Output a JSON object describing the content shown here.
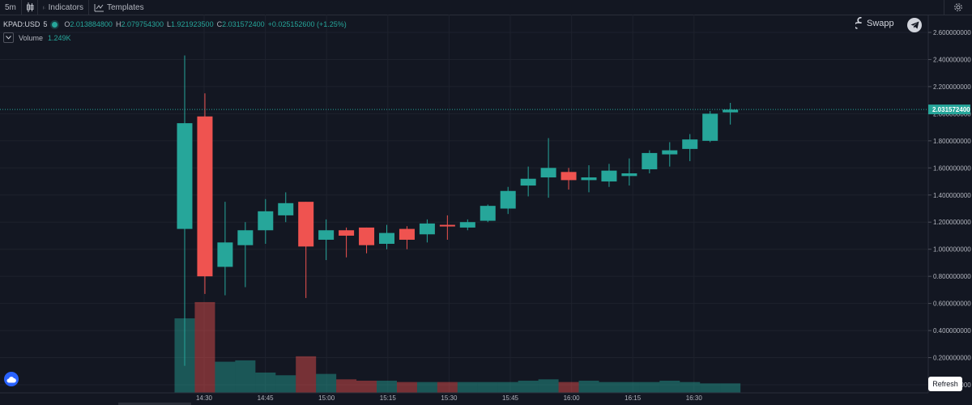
{
  "toolbar": {
    "interval": "5m",
    "indicators_label": "Indicators",
    "templates_label": "Templates"
  },
  "legend": {
    "symbol": "KPAD:USD",
    "interval": "5",
    "open_key": "O",
    "open": "2.013884800",
    "high_key": "H",
    "high": "2.079754300",
    "low_key": "L",
    "low": "1.921923500",
    "close_key": "C",
    "close": "2.031572400",
    "change": "+0.025152600 (+1.25%)",
    "volume_label": "Volume",
    "volume_value": "1.249K"
  },
  "brand": {
    "name": "Swapp"
  },
  "refresh_label": "Refresh",
  "colors": {
    "up": "#26a69a",
    "down": "#ef5350",
    "background": "#131722",
    "grid": "#1e222d"
  },
  "chart_data": {
    "type": "candlestick",
    "price_axis": {
      "ticks": [
        "2.600000000",
        "2.400000000",
        "2.200000000",
        "2.000000000",
        "1.800000000",
        "1.600000000",
        "1.400000000",
        "1.200000000",
        "1.000000000",
        "0.800000000",
        "0.600000000",
        "0.400000000",
        "0.200000000",
        "0.000000000"
      ],
      "range": [
        0,
        2.6
      ],
      "last_price_label": "2.031572400"
    },
    "time_axis": {
      "labels": [
        "14:30",
        "14:45",
        "15:00",
        "15:15",
        "15:30",
        "15:45",
        "16:00",
        "16:15",
        "16:30"
      ]
    },
    "candles": [
      {
        "o": 1.15,
        "h": 2.43,
        "l": 0.14,
        "c": 1.93
      },
      {
        "o": 1.98,
        "h": 2.15,
        "l": 0.67,
        "c": 0.8
      },
      {
        "o": 0.87,
        "h": 1.35,
        "l": 0.66,
        "c": 1.05
      },
      {
        "o": 1.03,
        "h": 1.2,
        "l": 0.72,
        "c": 1.14
      },
      {
        "o": 1.14,
        "h": 1.37,
        "l": 1.04,
        "c": 1.28
      },
      {
        "o": 1.25,
        "h": 1.42,
        "l": 1.2,
        "c": 1.34
      },
      {
        "o": 1.35,
        "h": 1.35,
        "l": 0.64,
        "c": 1.02
      },
      {
        "o": 1.07,
        "h": 1.22,
        "l": 0.92,
        "c": 1.14
      },
      {
        "o": 1.14,
        "h": 1.16,
        "l": 0.94,
        "c": 1.1
      },
      {
        "o": 1.16,
        "h": 1.16,
        "l": 0.97,
        "c": 1.03
      },
      {
        "o": 1.04,
        "h": 1.18,
        "l": 1.0,
        "c": 1.12
      },
      {
        "o": 1.15,
        "h": 1.17,
        "l": 1.0,
        "c": 1.07
      },
      {
        "o": 1.11,
        "h": 1.22,
        "l": 1.05,
        "c": 1.19
      },
      {
        "o": 1.18,
        "h": 1.25,
        "l": 1.07,
        "c": 1.17
      },
      {
        "o": 1.16,
        "h": 1.22,
        "l": 1.14,
        "c": 1.2
      },
      {
        "o": 1.21,
        "h": 1.33,
        "l": 1.2,
        "c": 1.32
      },
      {
        "o": 1.3,
        "h": 1.46,
        "l": 1.26,
        "c": 1.43
      },
      {
        "o": 1.47,
        "h": 1.61,
        "l": 1.39,
        "c": 1.52
      },
      {
        "o": 1.53,
        "h": 1.82,
        "l": 1.38,
        "c": 1.6
      },
      {
        "o": 1.57,
        "h": 1.6,
        "l": 1.44,
        "c": 1.51
      },
      {
        "o": 1.51,
        "h": 1.62,
        "l": 1.42,
        "c": 1.53
      },
      {
        "o": 1.5,
        "h": 1.63,
        "l": 1.46,
        "c": 1.58
      },
      {
        "o": 1.54,
        "h": 1.67,
        "l": 1.47,
        "c": 1.56
      },
      {
        "o": 1.59,
        "h": 1.73,
        "l": 1.56,
        "c": 1.71
      },
      {
        "o": 1.7,
        "h": 1.79,
        "l": 1.61,
        "c": 1.73
      },
      {
        "o": 1.74,
        "h": 1.85,
        "l": 1.65,
        "c": 1.81
      },
      {
        "o": 1.8,
        "h": 2.02,
        "l": 1.79,
        "c": 2.0
      },
      {
        "o": 2.01,
        "h": 2.08,
        "l": 1.92,
        "c": 2.03
      }
    ],
    "volume": [
      0.49,
      0.61,
      0.17,
      0.18,
      0.09,
      0.07,
      0.21,
      0.08,
      0.04,
      0.03,
      0.03,
      0.02,
      0.02,
      0.02,
      0.02,
      0.02,
      0.02,
      0.03,
      0.04,
      0.02,
      0.03,
      0.02,
      0.02,
      0.02,
      0.03,
      0.02,
      0.01,
      0.01
    ],
    "volume_axis_range": [
      0,
      2.6
    ]
  }
}
